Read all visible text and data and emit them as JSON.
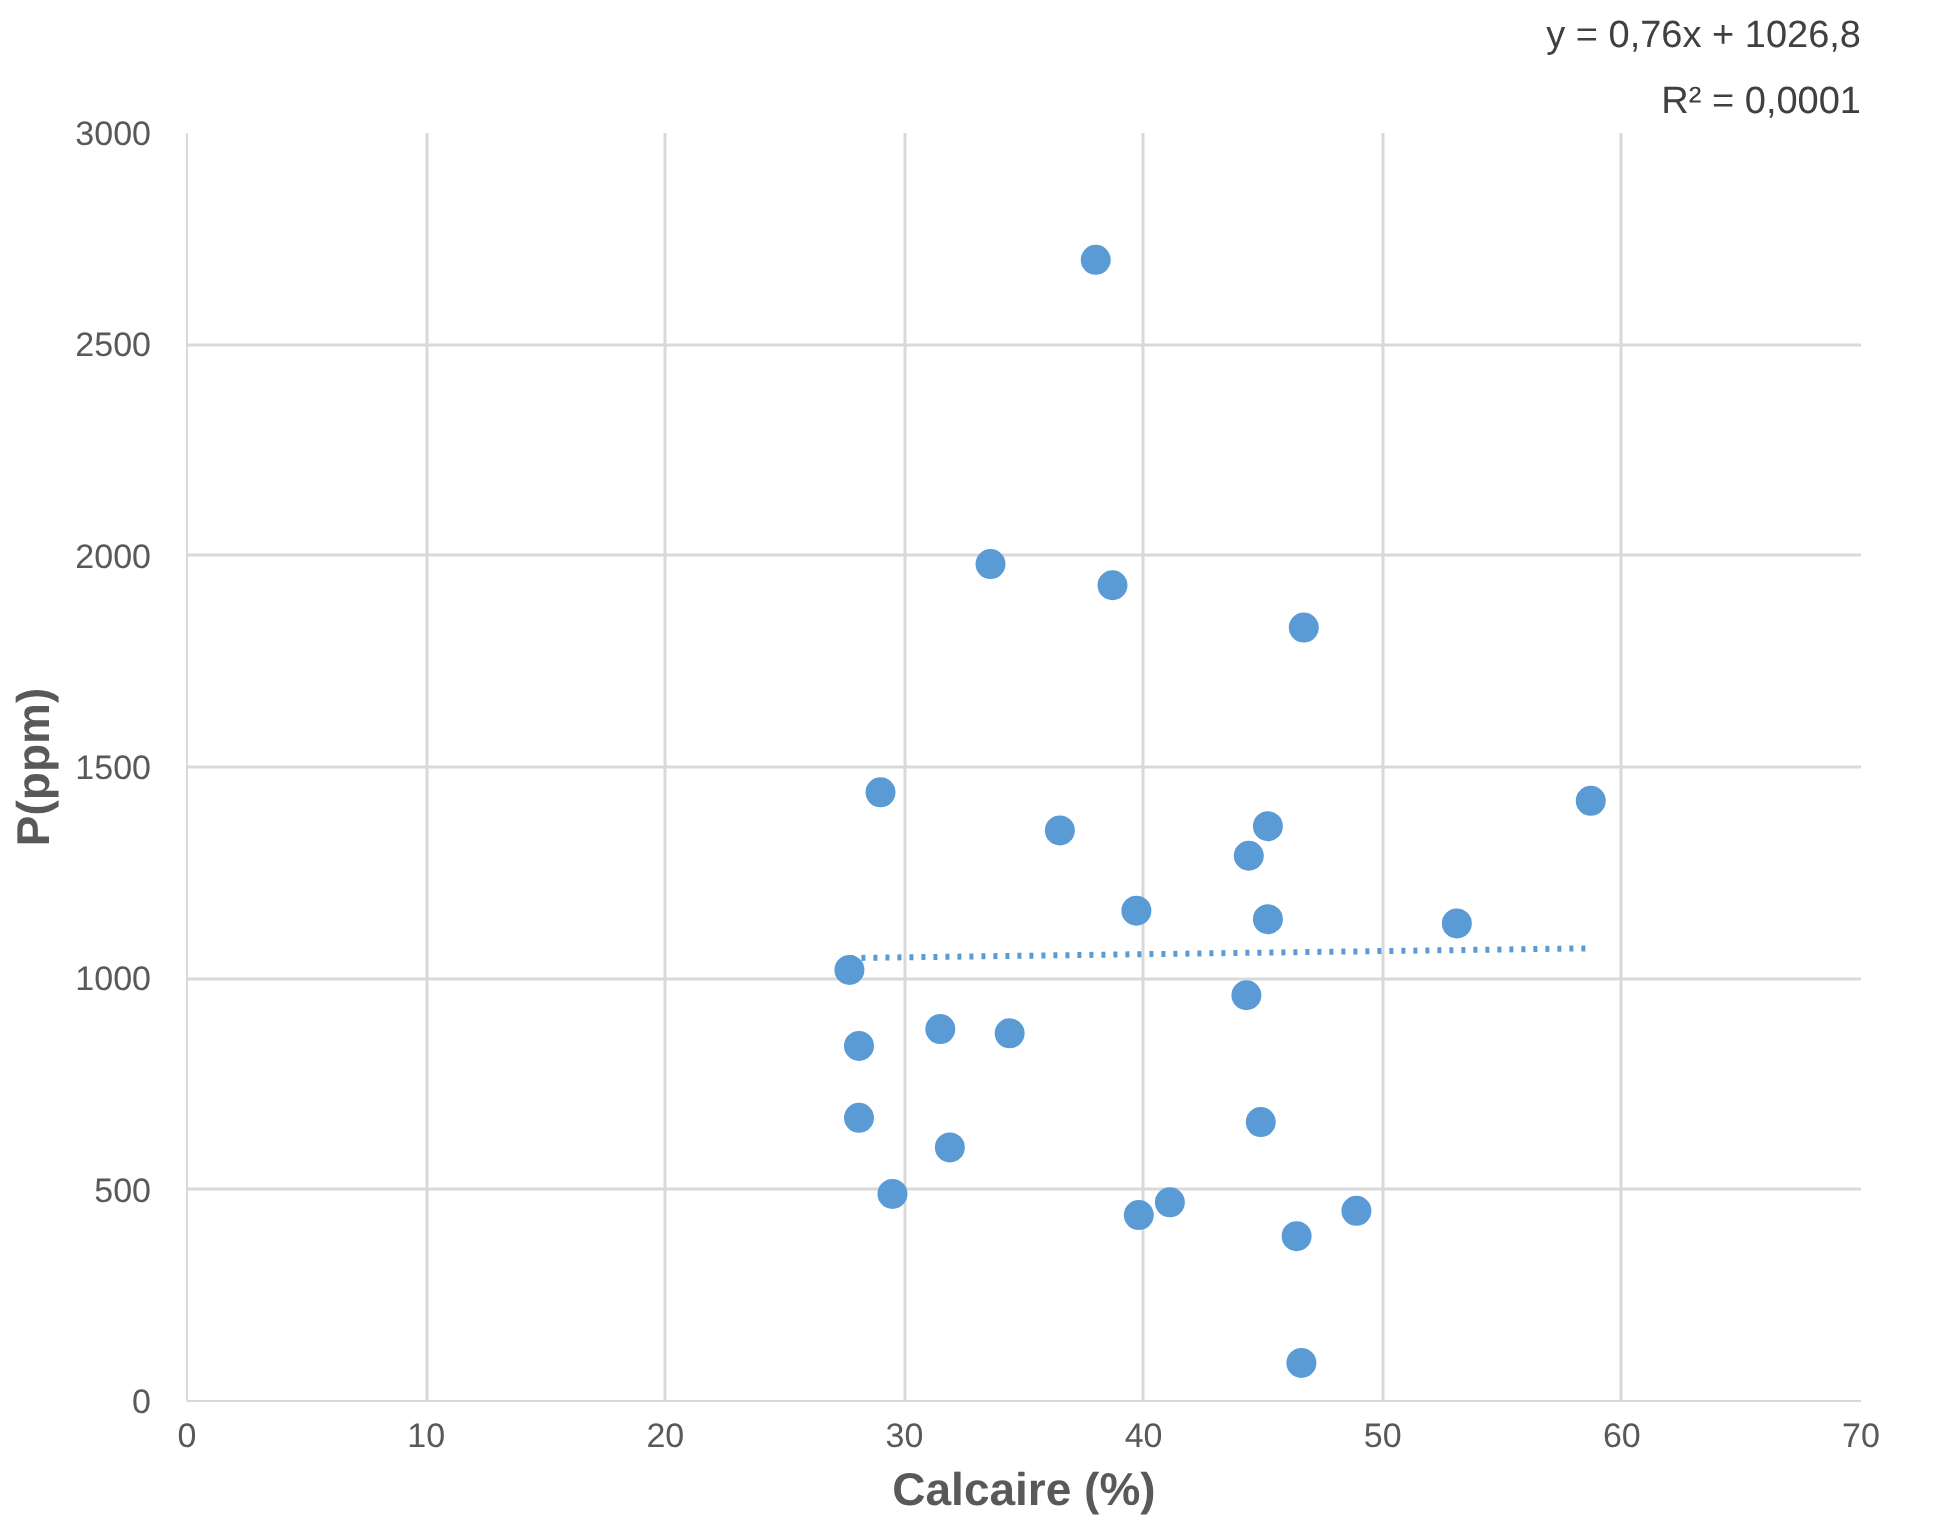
{
  "chart_data": {
    "type": "scatter",
    "xlabel": "Calcaire (%)",
    "ylabel": "P(ppm)",
    "annotations": [
      "y = 0,76x + 1026,8",
      "R² = 0,0001"
    ],
    "xlim": [
      0,
      70
    ],
    "xticks": [
      0,
      10,
      20,
      30,
      40,
      50,
      60,
      70
    ],
    "ylim": [
      0,
      3000
    ],
    "yticks": [
      0,
      500,
      1000,
      1500,
      2000,
      2500,
      3000
    ],
    "grid": true,
    "series": [
      {
        "color": "#5b9bd5",
        "marker": "circle",
        "x": [
          38.0,
          33.6,
          38.7,
          46.7,
          29.0,
          36.5,
          45.2,
          44.4,
          58.7,
          39.7,
          45.2,
          53.1,
          27.7,
          44.3,
          28.1,
          31.5,
          34.4,
          28.1,
          31.9,
          44.9,
          29.5,
          39.8,
          41.1,
          46.4,
          48.9,
          46.6
        ],
        "values": [
          2700,
          1980,
          1930,
          1830,
          1440,
          1350,
          1360,
          1290,
          1420,
          1160,
          1140,
          1130,
          1020,
          960,
          840,
          880,
          870,
          670,
          600,
          660,
          490,
          440,
          470,
          390,
          450,
          90
        ]
      },
      {
        "type": "line",
        "color": "#5b9bd5",
        "line_style": "dotted",
        "x": [
          27.7,
          58.7
        ],
        "values": [
          1048,
          1071
        ]
      }
    ]
  }
}
